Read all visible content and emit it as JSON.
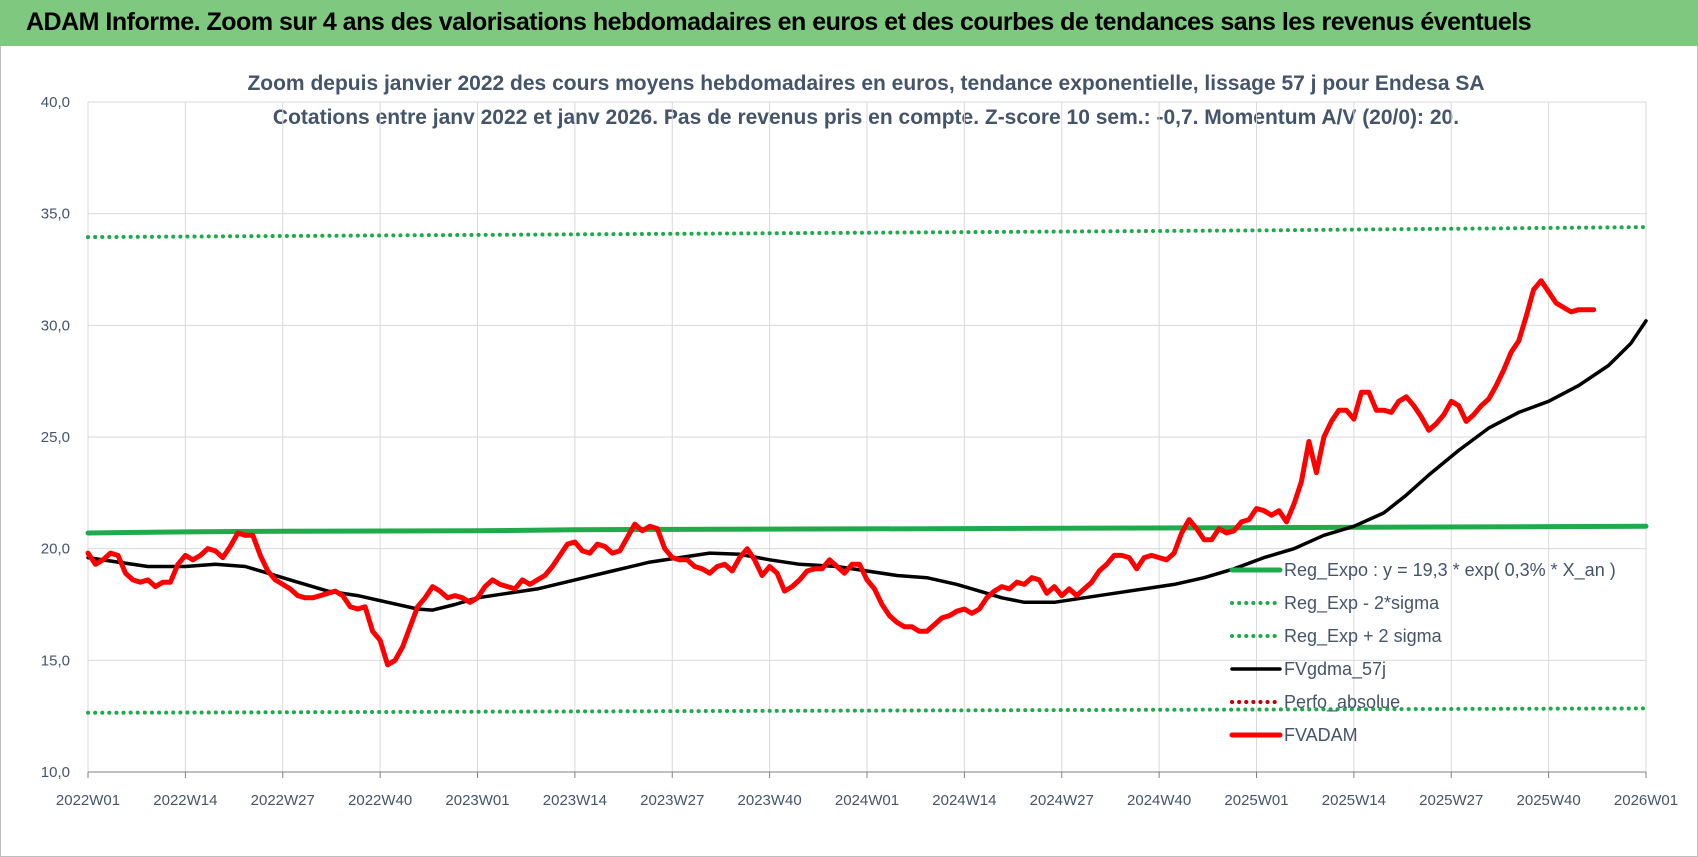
{
  "header": {
    "title": "ADAM Informe. Zoom sur 4 ans des valorisations hebdomadaires en euros et des courbes de tendances sans les revenus éventuels"
  },
  "colors": {
    "banner": "#7fc87f",
    "trend_green": "#1faa4b",
    "smooth_black": "#000000",
    "price_red": "#ff0000",
    "perfo_red": "#c00000",
    "text": "#44546a",
    "grid": "#d9d9d9"
  },
  "chart_data": {
    "type": "line",
    "title_lines": [
      "Zoom depuis janvier 2022 des cours moyens hebdomadaires en euros, tendance exponentielle, lissage 57 j pour Endesa SA",
      "Cotations entre janv 2022 et janv 2026. Pas de revenus pris en compte. Z-score 10 sem.: -0,7. Momentum A/V (20/0): 20."
    ],
    "ylim": [
      10,
      40
    ],
    "yticks": [
      "10,0",
      "15,0",
      "20,0",
      "25,0",
      "30,0",
      "35,0",
      "40,0"
    ],
    "ytick_values": [
      10,
      15,
      20,
      25,
      30,
      35,
      40
    ],
    "xticks": [
      "2022W01",
      "2022W14",
      "2022W27",
      "2022W40",
      "2023W01",
      "2023W14",
      "2023W27",
      "2023W40",
      "2024W01",
      "2024W14",
      "2024W27",
      "2024W40",
      "2025W01",
      "2025W14",
      "2025W27",
      "2025W40",
      "2026W01"
    ],
    "xtick_index": [
      0,
      13,
      26,
      39,
      52,
      65,
      78,
      91,
      104,
      117,
      130,
      143,
      156,
      169,
      182,
      195,
      208
    ],
    "x_count": 209,
    "grid": true,
    "legend_placement": "bottom-right",
    "series": [
      {
        "name": "Reg_Expo : y = 19,3 * exp( 0,3% *  X_an )",
        "style": "solid-thick",
        "color": "#1faa4b",
        "points": [
          [
            0,
            20.7
          ],
          [
            13,
            20.75
          ],
          [
            26,
            20.78
          ],
          [
            52,
            20.8
          ],
          [
            65,
            20.85
          ],
          [
            117,
            20.9
          ],
          [
            208,
            21.0
          ]
        ]
      },
      {
        "name": "Reg_Exp - 2*sigma",
        "style": "dotted",
        "color": "#1faa4b",
        "points": [
          [
            0,
            12.65
          ],
          [
            52,
            12.7
          ],
          [
            104,
            12.75
          ],
          [
            156,
            12.8
          ],
          [
            208,
            12.85
          ]
        ]
      },
      {
        "name": "Reg_Exp + 2 sigma",
        "style": "dotted",
        "color": "#1faa4b",
        "points": [
          [
            0,
            33.95
          ],
          [
            52,
            34.05
          ],
          [
            104,
            34.15
          ],
          [
            156,
            34.25
          ],
          [
            208,
            34.4
          ]
        ]
      },
      {
        "name": "FVgdma_57j",
        "style": "solid",
        "color": "#000000",
        "points": [
          [
            0,
            19.6
          ],
          [
            4,
            19.4
          ],
          [
            8,
            19.2
          ],
          [
            13,
            19.2
          ],
          [
            17,
            19.3
          ],
          [
            21,
            19.2
          ],
          [
            24,
            18.9
          ],
          [
            28,
            18.5
          ],
          [
            32,
            18.1
          ],
          [
            36,
            17.9
          ],
          [
            40,
            17.6
          ],
          [
            44,
            17.3
          ],
          [
            46,
            17.25
          ],
          [
            49,
            17.5
          ],
          [
            52,
            17.8
          ],
          [
            56,
            18.0
          ],
          [
            60,
            18.2
          ],
          [
            65,
            18.6
          ],
          [
            70,
            19.0
          ],
          [
            75,
            19.4
          ],
          [
            79,
            19.6
          ],
          [
            83,
            19.8
          ],
          [
            87,
            19.75
          ],
          [
            91,
            19.5
          ],
          [
            95,
            19.3
          ],
          [
            100,
            19.2
          ],
          [
            104,
            19.0
          ],
          [
            108,
            18.8
          ],
          [
            112,
            18.7
          ],
          [
            116,
            18.4
          ],
          [
            119,
            18.1
          ],
          [
            122,
            17.8
          ],
          [
            125,
            17.6
          ],
          [
            129,
            17.6
          ],
          [
            133,
            17.8
          ],
          [
            137,
            18.0
          ],
          [
            141,
            18.2
          ],
          [
            145,
            18.4
          ],
          [
            149,
            18.7
          ],
          [
            153,
            19.1
          ],
          [
            157,
            19.6
          ],
          [
            161,
            20.0
          ],
          [
            165,
            20.6
          ],
          [
            169,
            21.0
          ],
          [
            173,
            21.6
          ],
          [
            176,
            22.4
          ],
          [
            179,
            23.3
          ],
          [
            183,
            24.4
          ],
          [
            187,
            25.4
          ],
          [
            191,
            26.1
          ],
          [
            195,
            26.6
          ],
          [
            199,
            27.3
          ],
          [
            203,
            28.2
          ],
          [
            206,
            29.2
          ],
          [
            208,
            30.2
          ]
        ]
      },
      {
        "name": "Perfo_absolue",
        "style": "dotted",
        "color": "#c00000",
        "points": []
      },
      {
        "name": "FVADAM",
        "style": "solid-thick",
        "color": "#ff0000",
        "points": [
          [
            0,
            19.8
          ],
          [
            1,
            19.3
          ],
          [
            2,
            19.5
          ],
          [
            3,
            19.8
          ],
          [
            4,
            19.7
          ],
          [
            5,
            18.9
          ],
          [
            6,
            18.6
          ],
          [
            7,
            18.5
          ],
          [
            8,
            18.6
          ],
          [
            9,
            18.3
          ],
          [
            10,
            18.5
          ],
          [
            11,
            18.5
          ],
          [
            12,
            19.3
          ],
          [
            13,
            19.7
          ],
          [
            14,
            19.5
          ],
          [
            15,
            19.7
          ],
          [
            16,
            20.0
          ],
          [
            17,
            19.9
          ],
          [
            18,
            19.6
          ],
          [
            19,
            20.1
          ],
          [
            20,
            20.7
          ],
          [
            21,
            20.6
          ],
          [
            22,
            20.6
          ],
          [
            23,
            19.7
          ],
          [
            24,
            19.0
          ],
          [
            25,
            18.6
          ],
          [
            26,
            18.4
          ],
          [
            27,
            18.2
          ],
          [
            28,
            17.9
          ],
          [
            29,
            17.8
          ],
          [
            30,
            17.8
          ],
          [
            31,
            17.9
          ],
          [
            32,
            18.0
          ],
          [
            33,
            18.1
          ],
          [
            34,
            17.9
          ],
          [
            35,
            17.4
          ],
          [
            36,
            17.3
          ],
          [
            37,
            17.4
          ],
          [
            38,
            16.3
          ],
          [
            39,
            15.9
          ],
          [
            40,
            14.8
          ],
          [
            41,
            15.0
          ],
          [
            42,
            15.6
          ],
          [
            43,
            16.5
          ],
          [
            44,
            17.4
          ],
          [
            45,
            17.8
          ],
          [
            46,
            18.3
          ],
          [
            47,
            18.1
          ],
          [
            48,
            17.8
          ],
          [
            49,
            17.9
          ],
          [
            50,
            17.8
          ],
          [
            51,
            17.6
          ],
          [
            52,
            17.8
          ],
          [
            53,
            18.3
          ],
          [
            54,
            18.6
          ],
          [
            55,
            18.4
          ],
          [
            56,
            18.3
          ],
          [
            57,
            18.2
          ],
          [
            58,
            18.6
          ],
          [
            59,
            18.4
          ],
          [
            60,
            18.6
          ],
          [
            61,
            18.8
          ],
          [
            62,
            19.2
          ],
          [
            63,
            19.7
          ],
          [
            64,
            20.2
          ],
          [
            65,
            20.3
          ],
          [
            66,
            19.9
          ],
          [
            67,
            19.8
          ],
          [
            68,
            20.2
          ],
          [
            69,
            20.1
          ],
          [
            70,
            19.8
          ],
          [
            71,
            19.9
          ],
          [
            72,
            20.5
          ],
          [
            73,
            21.1
          ],
          [
            74,
            20.8
          ],
          [
            75,
            21.0
          ],
          [
            76,
            20.9
          ],
          [
            77,
            20.0
          ],
          [
            78,
            19.6
          ],
          [
            79,
            19.5
          ],
          [
            80,
            19.5
          ],
          [
            81,
            19.2
          ],
          [
            82,
            19.1
          ],
          [
            83,
            18.9
          ],
          [
            84,
            19.2
          ],
          [
            85,
            19.3
          ],
          [
            86,
            19.0
          ],
          [
            87,
            19.6
          ],
          [
            88,
            20.0
          ],
          [
            89,
            19.5
          ],
          [
            90,
            18.8
          ],
          [
            91,
            19.2
          ],
          [
            92,
            18.9
          ],
          [
            93,
            18.1
          ],
          [
            94,
            18.3
          ],
          [
            95,
            18.6
          ],
          [
            96,
            19.0
          ],
          [
            97,
            19.1
          ],
          [
            98,
            19.1
          ],
          [
            99,
            19.5
          ],
          [
            100,
            19.2
          ],
          [
            101,
            18.9
          ],
          [
            102,
            19.3
          ],
          [
            103,
            19.3
          ],
          [
            104,
            18.6
          ],
          [
            105,
            18.2
          ],
          [
            106,
            17.5
          ],
          [
            107,
            17.0
          ],
          [
            108,
            16.7
          ],
          [
            109,
            16.5
          ],
          [
            110,
            16.5
          ],
          [
            111,
            16.3
          ],
          [
            112,
            16.3
          ],
          [
            113,
            16.6
          ],
          [
            114,
            16.9
          ],
          [
            115,
            17.0
          ],
          [
            116,
            17.2
          ],
          [
            117,
            17.3
          ],
          [
            118,
            17.1
          ],
          [
            119,
            17.3
          ],
          [
            120,
            17.8
          ],
          [
            121,
            18.1
          ],
          [
            122,
            18.3
          ],
          [
            123,
            18.2
          ],
          [
            124,
            18.5
          ],
          [
            125,
            18.4
          ],
          [
            126,
            18.7
          ],
          [
            127,
            18.6
          ],
          [
            128,
            18.0
          ],
          [
            129,
            18.3
          ],
          [
            130,
            17.9
          ],
          [
            131,
            18.2
          ],
          [
            132,
            17.9
          ],
          [
            133,
            18.2
          ],
          [
            134,
            18.5
          ],
          [
            135,
            19.0
          ],
          [
            136,
            19.3
          ],
          [
            137,
            19.7
          ],
          [
            138,
            19.7
          ],
          [
            139,
            19.6
          ],
          [
            140,
            19.1
          ],
          [
            141,
            19.6
          ],
          [
            142,
            19.7
          ],
          [
            143,
            19.6
          ],
          [
            144,
            19.5
          ],
          [
            145,
            19.8
          ],
          [
            146,
            20.7
          ],
          [
            147,
            21.3
          ],
          [
            148,
            20.9
          ],
          [
            149,
            20.4
          ],
          [
            150,
            20.4
          ],
          [
            151,
            20.9
          ],
          [
            152,
            20.7
          ],
          [
            153,
            20.8
          ],
          [
            154,
            21.2
          ],
          [
            155,
            21.3
          ],
          [
            156,
            21.8
          ],
          [
            157,
            21.7
          ],
          [
            158,
            21.5
          ],
          [
            159,
            21.7
          ],
          [
            160,
            21.2
          ],
          [
            161,
            22.0
          ],
          [
            162,
            23.0
          ],
          [
            163,
            24.8
          ],
          [
            164,
            23.4
          ],
          [
            165,
            25.0
          ],
          [
            166,
            25.7
          ],
          [
            167,
            26.2
          ],
          [
            168,
            26.2
          ],
          [
            169,
            25.8
          ],
          [
            170,
            27.0
          ],
          [
            171,
            27.0
          ],
          [
            172,
            26.2
          ],
          [
            173,
            26.2
          ],
          [
            174,
            26.1
          ],
          [
            175,
            26.6
          ],
          [
            176,
            26.8
          ],
          [
            177,
            26.4
          ],
          [
            178,
            25.9
          ],
          [
            179,
            25.3
          ],
          [
            180,
            25.6
          ],
          [
            181,
            26.0
          ],
          [
            182,
            26.6
          ],
          [
            183,
            26.4
          ],
          [
            184,
            25.7
          ],
          [
            185,
            26.0
          ],
          [
            186,
            26.4
          ],
          [
            187,
            26.7
          ],
          [
            188,
            27.3
          ],
          [
            189,
            28.0
          ],
          [
            190,
            28.8
          ],
          [
            191,
            29.3
          ],
          [
            192,
            30.4
          ],
          [
            193,
            31.6
          ],
          [
            194,
            32.0
          ],
          [
            195,
            31.5
          ],
          [
            196,
            31.0
          ],
          [
            197,
            30.8
          ],
          [
            198,
            30.6
          ],
          [
            199,
            30.7
          ],
          [
            200,
            30.7
          ],
          [
            201,
            30.7
          ]
        ]
      }
    ]
  }
}
